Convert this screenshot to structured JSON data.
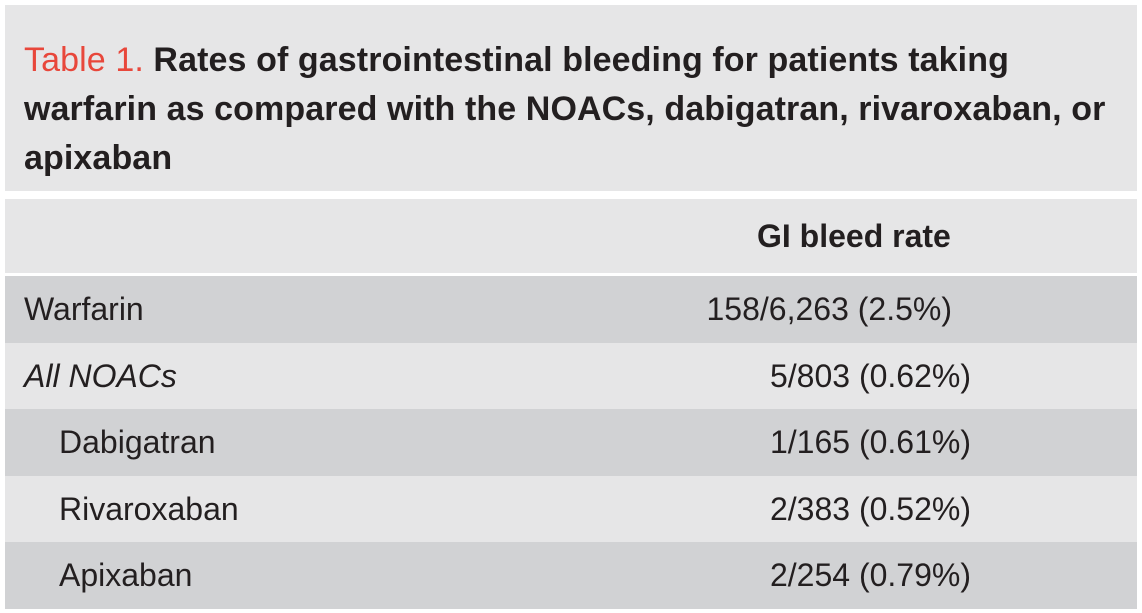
{
  "caption": {
    "label": "Table 1.",
    "text": " Rates of gastrointestinal bleeding for patients taking warfarin as compared with the NOACs, dabigatran, rivaroxaban, or apixaban"
  },
  "table": {
    "header": {
      "col1": "",
      "col2": "GI bleed rate"
    },
    "rows": [
      {
        "label": "Warfarin",
        "value": "158/6,263 (2.5%)"
      },
      {
        "label": "All NOACs",
        "value": "5/803 (0.62%)"
      },
      {
        "label": "Dabigatran",
        "value": "1/165 (0.61%)"
      },
      {
        "label": "Rivaroxaban",
        "value": "2/383 (0.52%)"
      },
      {
        "label": "Apixaban",
        "value": "2/254 (0.79%)"
      }
    ]
  },
  "colors": {
    "label_accent": "#e8473b",
    "caption_bg": "#e6e6e7",
    "row_shade": "#d1d2d4",
    "row_light": "#e6e6e7"
  }
}
